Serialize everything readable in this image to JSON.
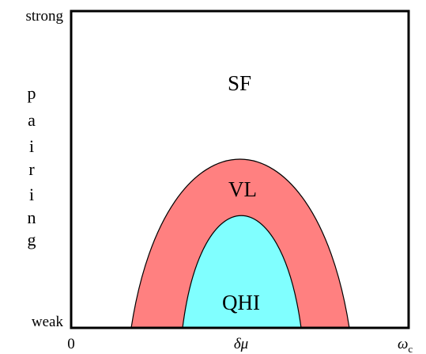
{
  "diagram": {
    "y_axis": {
      "top_label": "strong",
      "bottom_label": "weak",
      "title_letters": [
        "p",
        "a",
        "i",
        "r",
        "i",
        "n",
        "g"
      ]
    },
    "x_axis": {
      "origin_label": "0",
      "middle_label": "δμ",
      "end_label": "ω",
      "end_label_subscript": "c"
    },
    "regions": [
      {
        "id": "sf",
        "label": "SF",
        "color": "#ffffff"
      },
      {
        "id": "vl",
        "label": "VL",
        "color": "#ff8080"
      },
      {
        "id": "qhi",
        "label": "QHI",
        "color": "#80ffff"
      }
    ]
  }
}
